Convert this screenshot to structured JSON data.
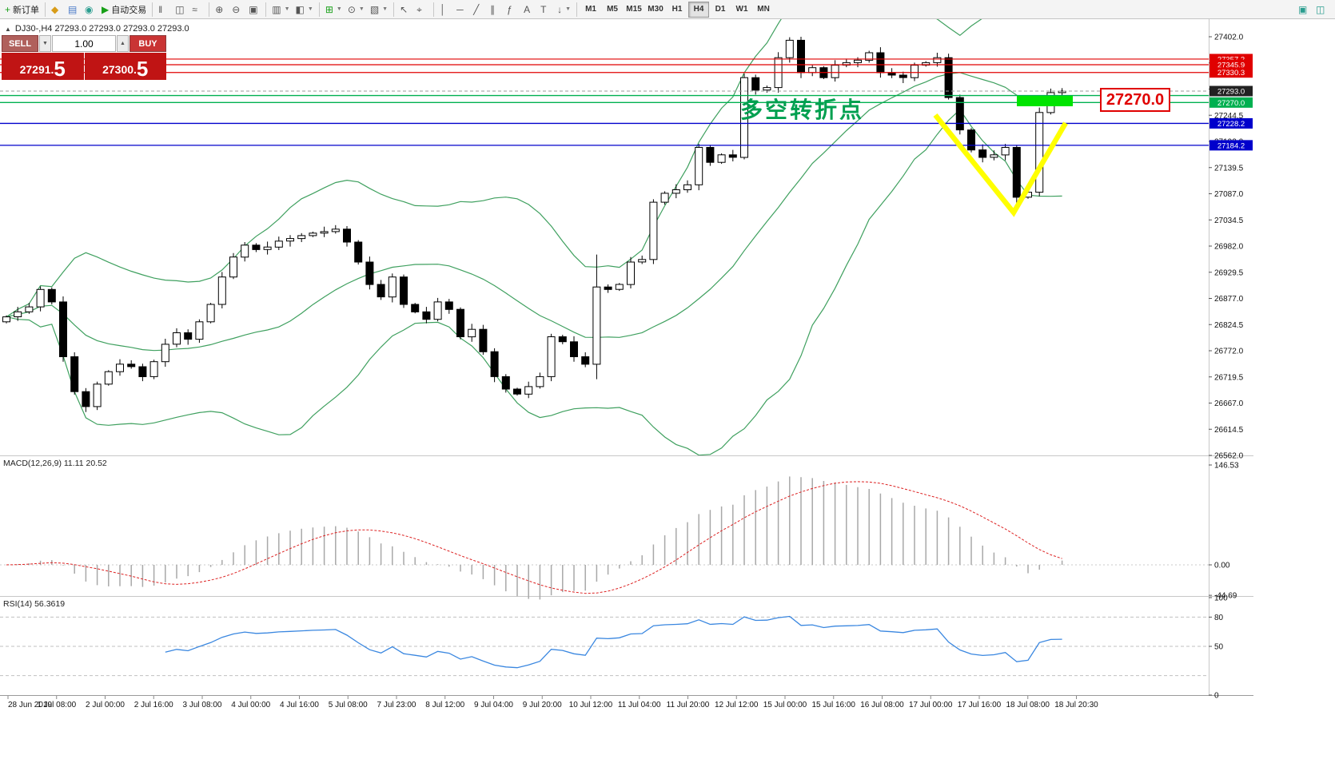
{
  "toolbar": {
    "groups": [
      {
        "items": [
          {
            "name": "new-order",
            "glyph": "+",
            "glyph_color": "#18a018",
            "label": "新订单"
          }
        ]
      },
      {
        "items": [
          {
            "name": "metaeditor",
            "glyph": "◆",
            "glyph_color": "#d89c18"
          },
          {
            "name": "market-watch",
            "glyph": "▤",
            "glyph_color": "#4878c8"
          },
          {
            "name": "community",
            "glyph": "◉",
            "glyph_color": "#2a9d8f"
          },
          {
            "name": "autotrading",
            "glyph": "▶",
            "glyph_color": "#18a018",
            "label": "自动交易"
          }
        ]
      },
      {
        "items": [
          {
            "name": "chart-bars",
            "glyph": "‖"
          },
          {
            "name": "chart-candles",
            "glyph": "◫"
          },
          {
            "name": "chart-line",
            "glyph": "≈"
          }
        ]
      },
      {
        "items": [
          {
            "name": "zoom-in",
            "glyph": "⊕"
          },
          {
            "name": "zoom-out",
            "glyph": "⊖"
          },
          {
            "name": "tile-windows",
            "glyph": "▣"
          }
        ]
      },
      {
        "items": [
          {
            "name": "new-chart",
            "glyph": "▥",
            "dropdown": true
          },
          {
            "name": "profiles",
            "glyph": "◧",
            "dropdown": true
          }
        ]
      },
      {
        "items": [
          {
            "name": "indicators",
            "glyph": "⊞",
            "glyph_color": "#18a018",
            "dropdown": true
          },
          {
            "name": "periods",
            "glyph": "⊙",
            "dropdown": true
          },
          {
            "name": "templates",
            "glyph": "▧",
            "dropdown": true
          }
        ]
      },
      {
        "items": [
          {
            "name": "cursor",
            "glyph": "↖"
          },
          {
            "name": "crosshair",
            "glyph": "⌖"
          }
        ]
      },
      {
        "items": [
          {
            "name": "vertical-line",
            "glyph": "│"
          },
          {
            "name": "horizontal-line",
            "glyph": "─"
          },
          {
            "name": "trendline",
            "glyph": "╱"
          },
          {
            "name": "equidistant-channel",
            "glyph": "∥"
          },
          {
            "name": "fibonacci",
            "glyph": "ƒ"
          },
          {
            "name": "text",
            "glyph": "A"
          },
          {
            "name": "text-label",
            "glyph": "T"
          },
          {
            "name": "arrows",
            "glyph": "↓",
            "dropdown": true
          }
        ]
      }
    ],
    "timeframes": [
      {
        "label": "M1"
      },
      {
        "label": "M5"
      },
      {
        "label": "M15"
      },
      {
        "label": "M30"
      },
      {
        "label": "H1"
      },
      {
        "label": "H4",
        "active": true
      },
      {
        "label": "D1"
      },
      {
        "label": "W1"
      },
      {
        "label": "MN"
      }
    ],
    "right_icons": [
      {
        "name": "window-tile",
        "glyph": "▣",
        "glyph_color": "#2a9d8f"
      },
      {
        "name": "window-cascade",
        "glyph": "◫",
        "glyph_color": "#2a9d8f"
      }
    ]
  },
  "symbol_info": {
    "collapse_glyph": "▲",
    "text": "DJ30-,H4  27293.0 27293.0 27293.0 27293.0"
  },
  "trade_panel": {
    "sell_label": "SELL",
    "buy_label": "BUY",
    "volume": "1.00",
    "dec_glyph": "▼",
    "inc_glyph": "▲",
    "sell_price": "27291.5",
    "buy_price": "27300.5"
  },
  "indicators": {
    "macd_label": "MACD(12,26,9) 11.11 20.52",
    "rsi_label": "RSI(14) 56.3619"
  },
  "annotations": {
    "pivot_text": "多空转折点",
    "price_callout": "27270.0"
  },
  "colors": {
    "bands": "#3fa05f",
    "bull": "#ffffff",
    "bear": "#000000",
    "candle_stroke": "#000000",
    "red_line": "#e00000",
    "blue_line": "#0000cc",
    "green_line": "#00b050",
    "current_line": "#999999",
    "macd_hist": "#a8a8a8",
    "macd_signal": "#dd2222",
    "rsi_line": "#3a87e0",
    "highlight_rect": "#00e400",
    "yellow_mark": "#ffff00",
    "axis_text": "#111111",
    "current_box": "#222222",
    "box_text": "#ffffff"
  },
  "chart_data": {
    "type": "candlestick",
    "symbol": "DJ30-",
    "timeframe": "H4",
    "closes": [
      26840,
      26850,
      26860,
      26895,
      26870,
      26760,
      26690,
      26660,
      26705,
      26730,
      26745,
      26740,
      26720,
      26750,
      26785,
      26808,
      26795,
      26830,
      26865,
      26920,
      26960,
      26984,
      26975,
      26980,
      26992,
      26997,
      27003,
      27008,
      27011,
      27016,
      26990,
      26950,
      26905,
      26880,
      26920,
      26865,
      26850,
      26835,
      26870,
      26855,
      26800,
      26815,
      26770,
      26720,
      26695,
      26685,
      26700,
      26720,
      26800,
      26790,
      26760,
      26745,
      26900,
      26895,
      26905,
      26950,
      26955,
      27070,
      27088,
      27095,
      27105,
      27180,
      27150,
      27165,
      27160,
      27320,
      27295,
      27300,
      27360,
      27395,
      27330,
      27340,
      27320,
      27345,
      27350,
      27355,
      27370,
      27330,
      27325,
      27320,
      27345,
      27350,
      27360,
      27280,
      27215,
      27175,
      27160,
      27165,
      27180,
      27080,
      27090,
      27250,
      27290,
      27293
    ],
    "wick_overrides": {
      "52": {
        "high": 26965,
        "low": 26715
      },
      "69": {
        "high": 27401,
        "low": 27350
      },
      "89": {
        "high": 27185,
        "low": 27058
      }
    },
    "price_axis": {
      "max": 27402.0,
      "min": 26562.0,
      "ticks": [
        "27402.0",
        "27349.5",
        "27297.0",
        "27244.5",
        "27192.0",
        "27139.5",
        "27087.0",
        "27034.5",
        "26982.0",
        "26929.5",
        "26877.0",
        "26824.5",
        "26772.0",
        "26719.5",
        "26667.0",
        "26614.5",
        "26562.0"
      ]
    },
    "price_lines": {
      "red": [
        {
          "value": 27357.2,
          "label": "27357.2"
        },
        {
          "value": 27345.9,
          "label": "27345.9"
        },
        {
          "value": 27330.3,
          "label": "27330.3"
        }
      ],
      "green": [
        {
          "value": 27284.0
        },
        {
          "value": 27270.0,
          "label": "27270.0"
        }
      ],
      "blue": [
        {
          "value": 27228.2,
          "label": "27228.2"
        },
        {
          "value": 27184.2,
          "label": "27184.2"
        }
      ],
      "current": {
        "value": 27293.0,
        "label": "27293.0"
      }
    },
    "bollinger": {
      "period": 20,
      "deviation": 2
    },
    "macd": {
      "params": "12,26,9",
      "axis_labels": [
        {
          "value": 146.53,
          "label": "146.53"
        },
        {
          "value": 0,
          "label": "0.00"
        },
        {
          "value": -44.69,
          "label": "-44.69"
        }
      ]
    },
    "rsi": {
      "period": 14,
      "levels": [
        80,
        50,
        20
      ],
      "axis_labels": [
        {
          "value": 100,
          "label": "100"
        },
        {
          "value": 80,
          "label": "80"
        },
        {
          "value": 50,
          "label": "50"
        },
        {
          "value": 0,
          "label": "0"
        }
      ]
    },
    "time_axis": [
      "28 Jun 2019",
      "1 Jul 08:00",
      "2 Jul 00:00",
      "2 Jul 16:00",
      "3 Jul 08:00",
      "4 Jul 00:00",
      "4 Jul 16:00",
      "5 Jul 08:00",
      "7 Jul 23:00",
      "8 Jul 12:00",
      "9 Jul 04:00",
      "9 Jul 20:00",
      "10 Jul 12:00",
      "11 Jul 04:00",
      "11 Jul 20:00",
      "12 Jul 12:00",
      "15 Jul 00:00",
      "15 Jul 16:00",
      "16 Jul 08:00",
      "17 Jul 00:00",
      "17 Jul 16:00",
      "18 Jul 08:00",
      "18 Jul 20:30"
    ],
    "drawings": {
      "highlight_rect": [
        1272,
        96,
        70,
        13
      ],
      "yellow_polyline": [
        [
          1170,
          120
        ],
        [
          1268,
          242
        ],
        [
          1333,
          130
        ]
      ]
    }
  }
}
